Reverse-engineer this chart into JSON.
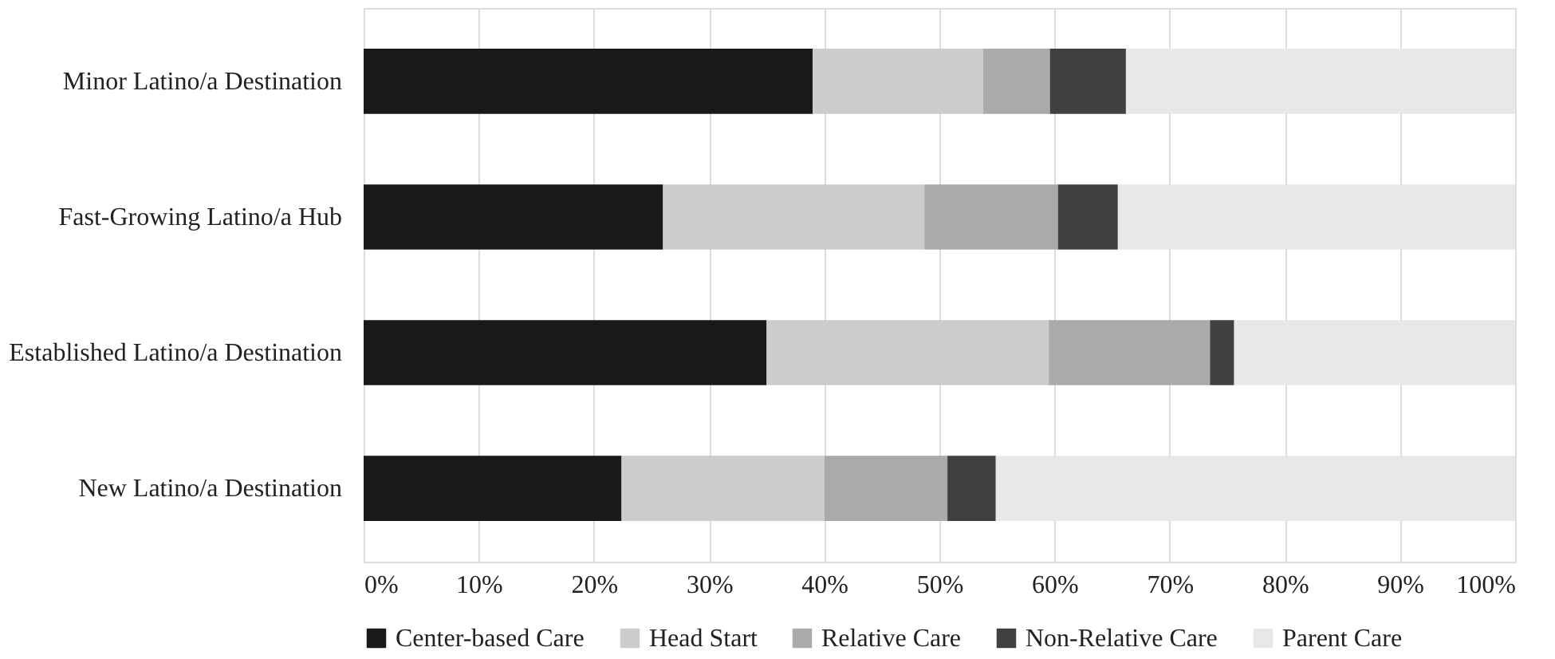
{
  "chart_data": {
    "type": "bar",
    "orientation": "horizontal",
    "stacked": true,
    "categories": [
      "Minor Latino/a Destination",
      "Fast-Growing Latino/a Hub",
      "Established Latino/a Destination",
      "New Latino/a Destination"
    ],
    "series": [
      {
        "name": "Center-based Care",
        "color": "#1a1a1a",
        "values": [
          39,
          26,
          35,
          22.4
        ]
      },
      {
        "name": "Head Start",
        "color": "#cccccc",
        "values": [
          14.8,
          22.7,
          24.5,
          17.6
        ]
      },
      {
        "name": "Relative Care",
        "color": "#aaaaaa",
        "values": [
          5.8,
          11.6,
          14,
          10.7
        ]
      },
      {
        "name": "Non-Relative Care",
        "color": "#404040",
        "values": [
          6.6,
          5.2,
          2.1,
          4.2
        ]
      },
      {
        "name": "Parent Care",
        "color": "#e8e8e8",
        "values": [
          33.8,
          34.5,
          24.4,
          45.1
        ]
      }
    ],
    "xlim": [
      0,
      100
    ],
    "xticks": [
      {
        "value": 0,
        "label": "0%"
      },
      {
        "value": 10,
        "label": "10%"
      },
      {
        "value": 20,
        "label": "20%"
      },
      {
        "value": 30,
        "label": "30%"
      },
      {
        "value": 40,
        "label": "40%"
      },
      {
        "value": 50,
        "label": "50%"
      },
      {
        "value": 60,
        "label": "60%"
      },
      {
        "value": 70,
        "label": "70%"
      },
      {
        "value": 80,
        "label": "80%"
      },
      {
        "value": 90,
        "label": "90%"
      },
      {
        "value": 100,
        "label": "100%"
      }
    ],
    "grid": "x",
    "legend": "bottom"
  }
}
